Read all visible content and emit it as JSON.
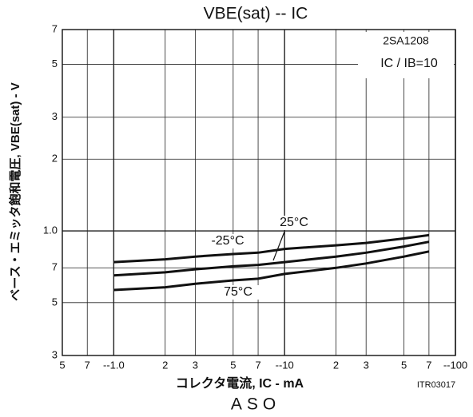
{
  "chart_data": {
    "type": "line",
    "title": "VBE(sat) -- IC",
    "x_label": "コレクタ電流, IC - mA",
    "y_label": "ベース・エミッタ飽和電圧, VBE(sat) - V",
    "annotations": [
      "2SA1208",
      "IC / IB=10",
      "ITR03017",
      "ASO"
    ],
    "x": [
      1,
      2,
      3,
      5,
      7,
      10,
      20,
      30,
      50,
      70
    ],
    "series": [
      {
        "name": "-25°C",
        "color": "#111111",
        "values": [
          0.74,
          0.76,
          0.78,
          0.8,
          0.81,
          0.84,
          0.87,
          0.89,
          0.93,
          0.96
        ]
      },
      {
        "name": "25°C",
        "color": "#111111",
        "values": [
          0.65,
          0.67,
          0.69,
          0.71,
          0.72,
          0.74,
          0.78,
          0.81,
          0.86,
          0.9
        ]
      },
      {
        "name": "75°C",
        "color": "#111111",
        "values": [
          0.565,
          0.58,
          0.6,
          0.62,
          0.63,
          0.66,
          0.7,
          0.73,
          0.78,
          0.82
        ]
      }
    ],
    "xscale": "log",
    "yscale": "log",
    "grid": true,
    "xlim": [
      0.5,
      100
    ],
    "ylim": [
      0.3,
      7
    ],
    "xticks": [
      {
        "value": 0.5,
        "label": "5"
      },
      {
        "value": 0.7,
        "label": "7"
      },
      {
        "value": 1,
        "label": "--1.0"
      },
      2,
      3,
      5,
      7,
      {
        "value": 10,
        "label": "--10"
      },
      {
        "value": 20,
        "label": "2"
      },
      {
        "value": 30,
        "label": "3"
      },
      {
        "value": 50,
        "label": "5"
      },
      {
        "value": 70,
        "label": "7"
      },
      {
        "value": 100,
        "label": "--100"
      }
    ],
    "yticks": [
      {
        "value": 0.3,
        "label": "3"
      },
      {
        "value": 0.5,
        "label": "5"
      },
      {
        "value": 0.7,
        "label": "7"
      },
      {
        "value": 1,
        "label": "1.0"
      },
      2,
      3,
      5,
      7
    ]
  }
}
